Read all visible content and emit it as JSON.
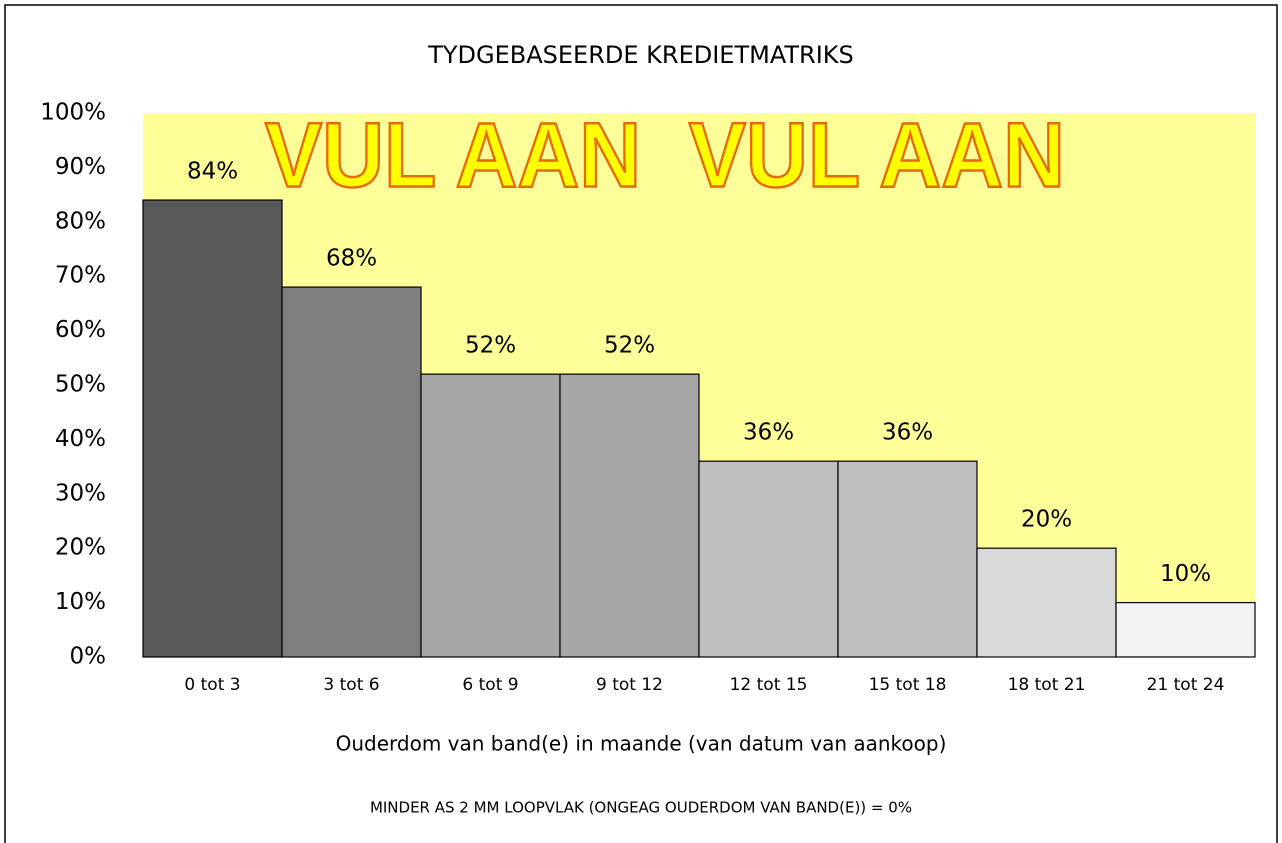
{
  "chart_data": {
    "type": "bar",
    "title": "TYDGEBASEERDE KREDIETMATRIKS",
    "annotation": "VUL AAN  VUL AAN",
    "x_label": "Ouderdom van band(e) in maande (van datum van aankoop)",
    "footnote": "MINDER AS 2 MM LOOPVLAK (ONGEAG OUDERDOM VAN BAND(E)) = 0%",
    "categories": [
      "0 tot 3",
      "3 tot 6",
      "6 tot 9",
      "9 tot 12",
      "12 tot 15",
      "15 tot 18",
      "18 tot 21",
      "21 tot 24"
    ],
    "values": [
      84,
      68,
      52,
      52,
      36,
      36,
      20,
      10
    ],
    "value_labels": [
      "84%",
      "68%",
      "52%",
      "52%",
      "36%",
      "36%",
      "20%",
      "10%"
    ],
    "colors": [
      "#595959",
      "#7f7f7f",
      "#a6a6a6",
      "#a6a6a6",
      "#bfbfbf",
      "#bfbfbf",
      "#d9d9d9",
      "#f2f2f2"
    ],
    "plot_background": "#ffff99",
    "ylim": [
      0,
      100
    ],
    "yticks": [
      {
        "value": 0,
        "label": "0%"
      },
      {
        "value": 10,
        "label": "10%"
      },
      {
        "value": 20,
        "label": "20%"
      },
      {
        "value": 30,
        "label": "30%"
      },
      {
        "value": 40,
        "label": "40%"
      },
      {
        "value": 50,
        "label": "50%"
      },
      {
        "value": 60,
        "label": "60%"
      },
      {
        "value": 70,
        "label": "70%"
      },
      {
        "value": 80,
        "label": "80%"
      },
      {
        "value": 90,
        "label": "90%"
      },
      {
        "value": 100,
        "label": "100%"
      }
    ],
    "grid": false
  }
}
